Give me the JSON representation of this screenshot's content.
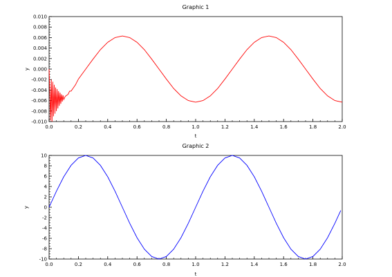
{
  "chart_data": [
    {
      "type": "line",
      "title": "Graphic 1",
      "xlabel": "t",
      "ylabel": "y",
      "xlim": [
        0,
        2.0
      ],
      "ylim": [
        -0.01,
        0.01
      ],
      "xticks": [
        "0.0",
        "0.2",
        "0.4",
        "0.6",
        "0.8",
        "1.0",
        "1.2",
        "1.4",
        "1.6",
        "1.8",
        "2.0"
      ],
      "yticks": [
        "-0.010",
        "-0.008",
        "-0.006",
        "-0.004",
        "-0.002",
        "0.000",
        "0.002",
        "0.004",
        "0.006",
        "0.008",
        "0.010"
      ],
      "series": [
        {
          "color": "#ff0000",
          "x": [
            0.0,
            0.005,
            0.01,
            0.015,
            0.02,
            0.025,
            0.03,
            0.035,
            0.04,
            0.045,
            0.05,
            0.055,
            0.06,
            0.065,
            0.07,
            0.075,
            0.08,
            0.085,
            0.09,
            0.095,
            0.1,
            0.11,
            0.12,
            0.13,
            0.14,
            0.15,
            0.16,
            0.18,
            0.2,
            0.25,
            0.3,
            0.35,
            0.4,
            0.45,
            0.5,
            0.55,
            0.6,
            0.65,
            0.7,
            0.75,
            0.8,
            0.85,
            0.9,
            0.95,
            1.0,
            1.05,
            1.1,
            1.15,
            1.2,
            1.25,
            1.3,
            1.35,
            1.4,
            1.45,
            1.5,
            1.55,
            1.6,
            1.65,
            1.7,
            1.75,
            1.8,
            1.85,
            1.9,
            1.95,
            2.0
          ],
          "y": [
            0.0,
            -0.0045,
            -0.0098,
            -0.002,
            -0.01,
            -0.0024,
            -0.009,
            -0.003,
            -0.0085,
            -0.0035,
            -0.008,
            -0.0038,
            -0.0075,
            -0.0042,
            -0.007,
            -0.0045,
            -0.0066,
            -0.0048,
            -0.0062,
            -0.005,
            -0.0058,
            -0.0052,
            -0.005,
            -0.0048,
            -0.0042,
            -0.0042,
            -0.0038,
            -0.003,
            -0.0019,
            0.0,
            0.0019,
            0.0037,
            0.0051,
            0.006,
            0.0063,
            0.006,
            0.0051,
            0.0037,
            0.0019,
            0.0,
            -0.0019,
            -0.0037,
            -0.0051,
            -0.006,
            -0.0063,
            -0.006,
            -0.0051,
            -0.0037,
            -0.0019,
            0.0,
            0.0019,
            0.0037,
            0.0051,
            0.006,
            0.0063,
            0.006,
            0.0051,
            0.0037,
            0.0019,
            0.0,
            -0.0019,
            -0.0037,
            -0.0051,
            -0.006,
            -0.0063
          ]
        }
      ]
    },
    {
      "type": "line",
      "title": "Graphic 2",
      "xlabel": "t",
      "ylabel": "y",
      "xlim": [
        0,
        2.0
      ],
      "ylim": [
        -10,
        10
      ],
      "xticks": [
        "0.0",
        "0.2",
        "0.4",
        "0.6",
        "0.8",
        "1.0",
        "1.2",
        "1.4",
        "1.6",
        "1.8",
        "2.0"
      ],
      "yticks": [
        "-10",
        "-8",
        "-6",
        "-4",
        "-2",
        "0",
        "2",
        "4",
        "6",
        "8",
        "10"
      ],
      "series": [
        {
          "color": "#0000ff",
          "x": [
            0.0,
            0.05,
            0.1,
            0.15,
            0.2,
            0.25,
            0.3,
            0.35,
            0.4,
            0.45,
            0.5,
            0.55,
            0.6,
            0.65,
            0.7,
            0.75,
            0.8,
            0.85,
            0.9,
            0.95,
            1.0,
            1.05,
            1.1,
            1.15,
            1.2,
            1.25,
            1.3,
            1.35,
            1.4,
            1.45,
            1.5,
            1.55,
            1.6,
            1.65,
            1.7,
            1.75,
            1.8,
            1.85,
            1.9,
            1.95,
            1.99
          ],
          "y": [
            0.0,
            3.09,
            5.88,
            8.09,
            9.51,
            10.0,
            9.51,
            8.09,
            5.88,
            3.09,
            0.0,
            -3.09,
            -5.88,
            -8.09,
            -9.51,
            -10.0,
            -9.51,
            -8.09,
            -5.88,
            -3.09,
            0.0,
            3.09,
            5.88,
            8.09,
            9.51,
            10.0,
            9.51,
            8.09,
            5.88,
            3.09,
            0.0,
            -3.09,
            -5.88,
            -8.09,
            -9.51,
            -10.0,
            -9.51,
            -8.09,
            -5.88,
            -3.09,
            -0.63
          ]
        }
      ]
    }
  ]
}
